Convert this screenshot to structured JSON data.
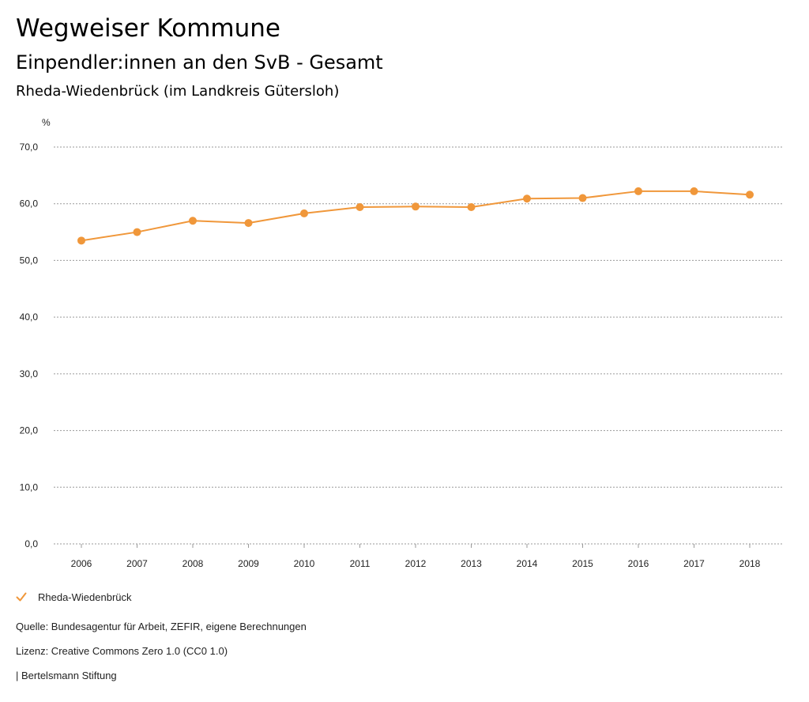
{
  "header": {
    "title": "Wegweiser Kommune",
    "subtitle": "Einpendler:innen an den SvB - Gesamt",
    "region": "Rheda-Wiedenbrück (im Landkreis Gütersloh)"
  },
  "legend": {
    "label": "Rheda-Wiedenbrück",
    "icon": "check-icon",
    "color": "#f0973a"
  },
  "footer": {
    "source": "Quelle: Bundesagentur für Arbeit, ZEFIR, eigene Berechnungen",
    "license": "Lizenz: Creative Commons Zero 1.0 (CC0 1.0)",
    "publisher": "| Bertelsmann Stiftung"
  },
  "chart_data": {
    "type": "line",
    "title": "Einpendler:innen an den SvB - Gesamt",
    "subtitle": "Rheda-Wiedenbrück (im Landkreis Gütersloh)",
    "ylabel": "%",
    "xlabel": "",
    "categories": [
      "2006",
      "2007",
      "2008",
      "2009",
      "2010",
      "2011",
      "2012",
      "2013",
      "2014",
      "2015",
      "2016",
      "2017",
      "2018"
    ],
    "series": [
      {
        "name": "Rheda-Wiedenbrück",
        "color": "#f0973a",
        "values": [
          53.5,
          55.0,
          57.0,
          56.6,
          58.3,
          59.4,
          59.5,
          59.4,
          60.9,
          61.0,
          62.2,
          62.2,
          61.6
        ]
      }
    ],
    "ylim": [
      0,
      70
    ],
    "yticks": [
      0,
      10,
      20,
      30,
      40,
      50,
      60,
      70
    ],
    "ytick_labels": [
      "0,0",
      "10,0",
      "20,0",
      "30,0",
      "40,0",
      "50,0",
      "60,0",
      "70,0"
    ],
    "grid": true,
    "legend_position": "bottom-left"
  }
}
